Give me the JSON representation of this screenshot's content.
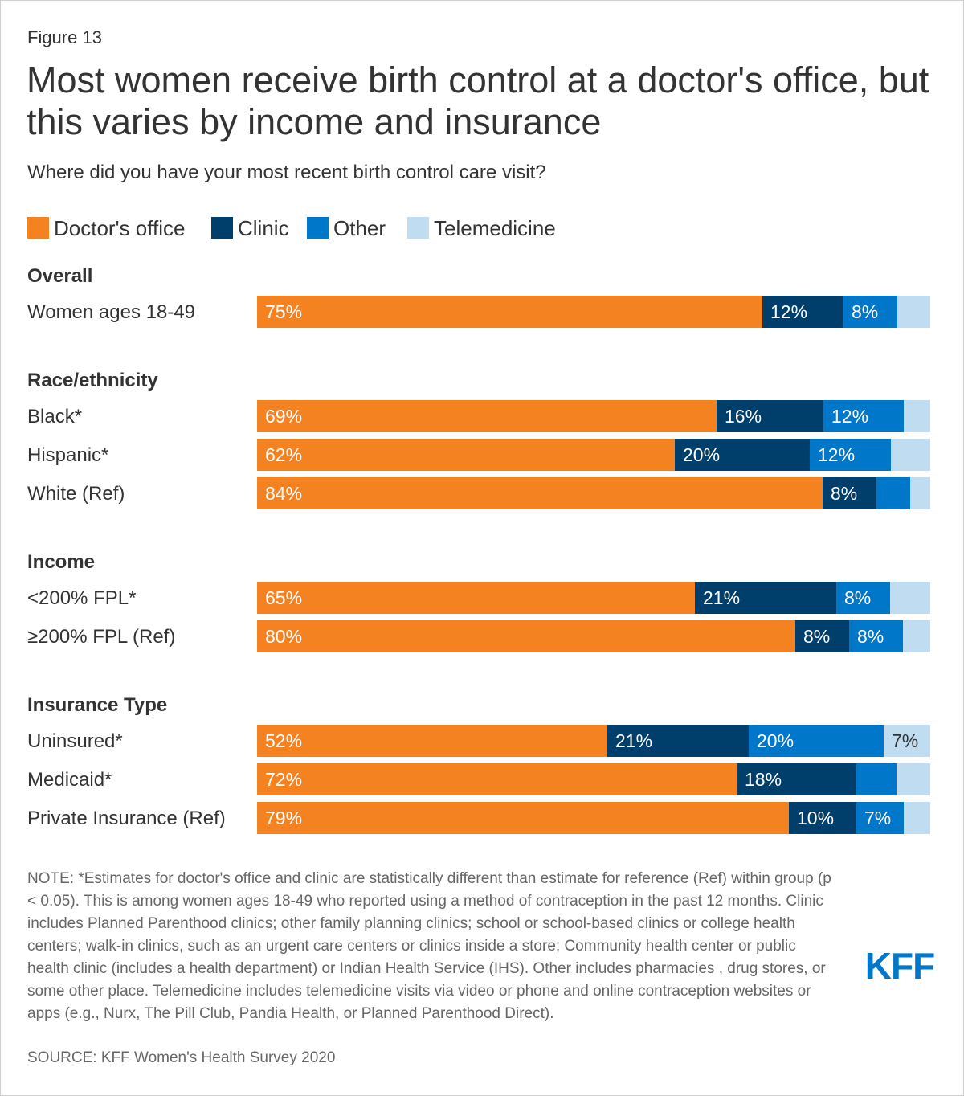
{
  "figure_label": "Figure 13",
  "title": "Most women receive birth control at a doctor's office, but this varies by income and insurance",
  "subtitle": "Where did you have your most recent birth control care visit?",
  "colors": {
    "doctors_office": "#f58220",
    "clinic": "#003e6b",
    "other": "#0077c8",
    "telemedicine": "#bfdcf0",
    "label_on_light": "#333333"
  },
  "note": "NOTE: *Estimates for doctor's office and clinic are statistically different than estimate for reference (Ref) within group (p < 0.05). This is among women ages 18-49 who reported using a method of contraception in the past 12 months. Clinic includes Planned Parenthood clinics; other family planning clinics; school or school-based clinics or college health centers; walk-in clinics, such as an urgent care centers or clinics inside a store; Community health center or public health clinic (includes a health department) or Indian Health Service (IHS). Other includes pharmacies , drug stores, or some other place. Telemedicine includes telemedicine visits via video or phone and online contraception websites or apps (e.g., Nurx, The Pill Club, Pandia Health, or Planned Parenthood Direct).",
  "source": "SOURCE: KFF Women's Health Survey 2020",
  "logo_text": "KFF",
  "chart_data": {
    "type": "bar",
    "orientation": "horizontal",
    "stacked": true,
    "xlim": [
      0,
      100
    ],
    "legend_position": "top-left",
    "series": [
      {
        "key": "doctors_office",
        "name": "Doctor's office"
      },
      {
        "key": "clinic",
        "name": "Clinic"
      },
      {
        "key": "other",
        "name": "Other"
      },
      {
        "key": "telemedicine",
        "name": "Telemedicine"
      }
    ],
    "groups": [
      {
        "label": "Overall",
        "rows": [
          {
            "label": "Women ages 18-49",
            "values": [
              75,
              12,
              8,
              5
            ],
            "labels": [
              "75%",
              "12%",
              "8%",
              ""
            ]
          }
        ]
      },
      {
        "label": "Race/ethnicity",
        "rows": [
          {
            "label": "Black*",
            "values": [
              69,
              16,
              12,
              4
            ],
            "labels": [
              "69%",
              "16%",
              "12%",
              ""
            ]
          },
          {
            "label": "Hispanic*",
            "values": [
              62,
              20,
              12,
              6
            ],
            "labels": [
              "62%",
              "20%",
              "12%",
              ""
            ]
          },
          {
            "label": "White (Ref)",
            "values": [
              84,
              8,
              5,
              3
            ],
            "labels": [
              "84%",
              "8%",
              "",
              ""
            ]
          }
        ]
      },
      {
        "label": "Income",
        "rows": [
          {
            "label": "<200% FPL*",
            "values": [
              65,
              21,
              8,
              6
            ],
            "labels": [
              "65%",
              "21%",
              "8%",
              ""
            ]
          },
          {
            "label": "≥200% FPL (Ref)",
            "values": [
              80,
              8,
              8,
              4
            ],
            "labels": [
              "80%",
              "8%",
              "8%",
              ""
            ]
          }
        ]
      },
      {
        "label": "Insurance Type",
        "rows": [
          {
            "label": "Uninsured*",
            "values": [
              52,
              21,
              20,
              7
            ],
            "labels": [
              "52%",
              "21%",
              "20%",
              "7%"
            ]
          },
          {
            "label": "Medicaid*",
            "values": [
              72,
              18,
              6,
              5
            ],
            "labels": [
              "72%",
              "18%",
              "",
              ""
            ]
          },
          {
            "label": "Private Insurance (Ref)",
            "values": [
              79,
              10,
              7,
              4
            ],
            "labels": [
              "79%",
              "10%",
              "7%",
              ""
            ]
          }
        ]
      }
    ]
  }
}
